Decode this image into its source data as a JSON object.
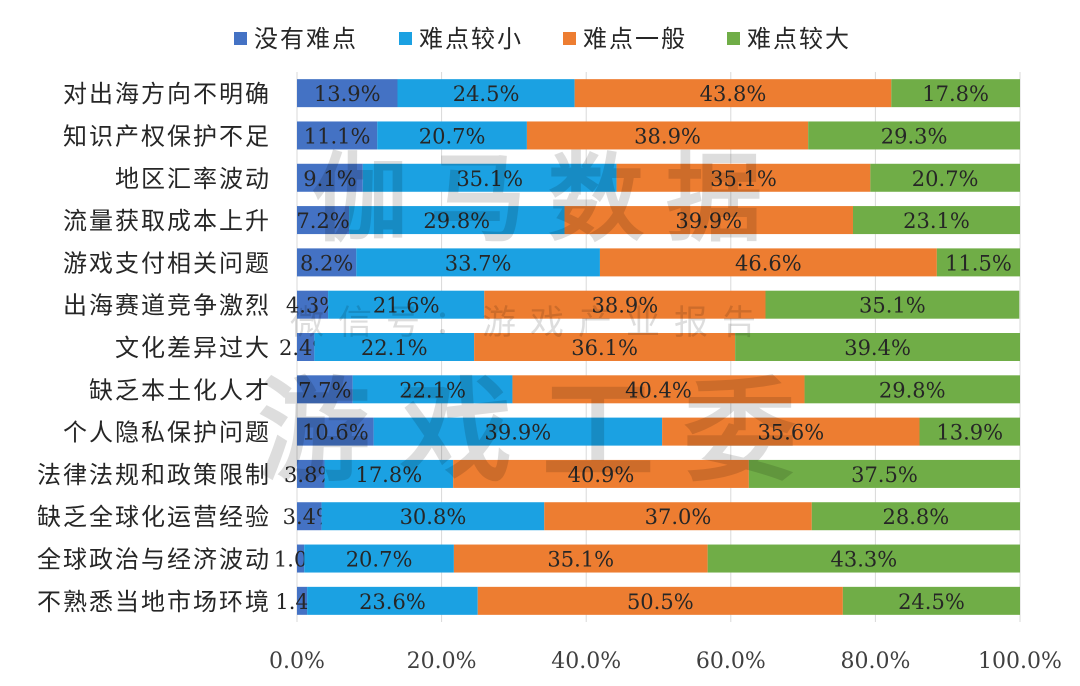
{
  "chart_data": {
    "type": "bar",
    "orientation": "horizontal",
    "stacked": true,
    "title": "",
    "xlabel": "",
    "ylabel": "",
    "xlim": [
      0,
      100
    ],
    "x_ticks": [
      "0.0%",
      "20.0%",
      "40.0%",
      "60.0%",
      "80.0%",
      "100.0%"
    ],
    "x_tick_values": [
      0,
      20,
      40,
      60,
      80,
      100
    ],
    "grid": true,
    "legend_position": "top",
    "categories": [
      "对出海方向不明确",
      "知识产权保护不足",
      "地区汇率波动",
      "流量获取成本上升",
      "游戏支付相关问题",
      "出海赛道竞争激烈",
      "文化差异过大",
      "缺乏本土化人才",
      "个人隐私保护问题",
      "法律法规和政策限制",
      "缺乏全球化运营经验",
      "全球政治与经济波动",
      "不熟悉当地市场环境"
    ],
    "series": [
      {
        "name": "没有难点",
        "color": "#4472C4",
        "values": [
          13.9,
          11.1,
          9.1,
          7.2,
          8.2,
          4.3,
          2.4,
          7.7,
          10.6,
          3.8,
          3.4,
          1.0,
          1.4
        ]
      },
      {
        "name": "难点较小",
        "color": "#1BA1E2",
        "values": [
          24.5,
          20.7,
          35.1,
          29.8,
          33.7,
          21.6,
          22.1,
          22.1,
          39.9,
          17.8,
          30.8,
          20.7,
          23.6
        ]
      },
      {
        "name": "难点一般",
        "color": "#ED7D31",
        "values": [
          43.8,
          38.9,
          35.1,
          39.9,
          46.6,
          38.9,
          36.1,
          40.4,
          35.6,
          40.9,
          37.0,
          35.1,
          50.5
        ]
      },
      {
        "name": "难点较大",
        "color": "#70AD47",
        "values": [
          17.8,
          29.3,
          20.7,
          23.1,
          11.5,
          35.1,
          39.4,
          29.8,
          13.9,
          37.5,
          28.8,
          43.3,
          24.5
        ]
      }
    ],
    "watermark": {
      "line1": "伽马数据",
      "line2": "微信号：游戏产业报告",
      "line3": "游戏工委"
    }
  }
}
